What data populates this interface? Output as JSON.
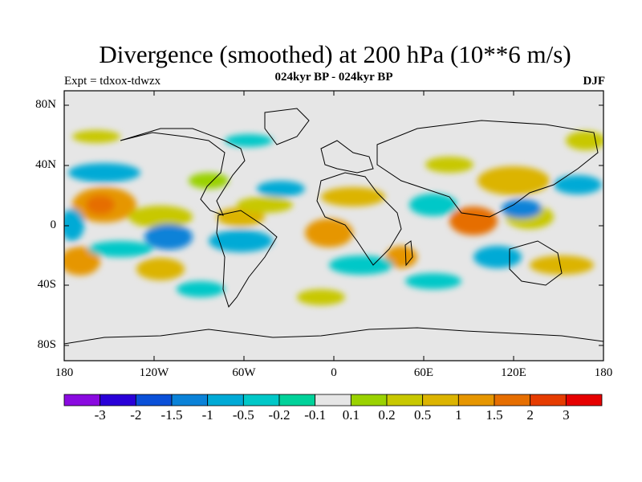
{
  "title": "Divergence (smoothed) at 200 hPa (10**6 m/s)",
  "subtitle": "024kyr BP - 024kyr BP",
  "experiment": "Expt = tdxox-tdwzx",
  "season": "DJF",
  "map": {
    "lat_labels": [
      "80N",
      "40N",
      "0",
      "40S",
      "80S"
    ],
    "lon_labels": [
      "180",
      "120W",
      "60W",
      "0",
      "60E",
      "120E",
      "180"
    ],
    "background_color": "#e6e6e6"
  },
  "colorbar": {
    "labels": [
      "-3",
      "-2",
      "-1.5",
      "-1",
      "-0.5",
      "-0.2",
      "-0.1",
      "0.1",
      "0.2",
      "0.5",
      "1",
      "1.5",
      "2",
      "3"
    ],
    "colors": [
      "#8a0ae0",
      "#2a00d8",
      "#0a50d8",
      "#0a82d8",
      "#00aad6",
      "#00c8c8",
      "#00d29a",
      "#e6e6e6",
      "#9ad200",
      "#c8c800",
      "#dcb400",
      "#e69600",
      "#e66e00",
      "#e63c00",
      "#e60000"
    ]
  }
}
